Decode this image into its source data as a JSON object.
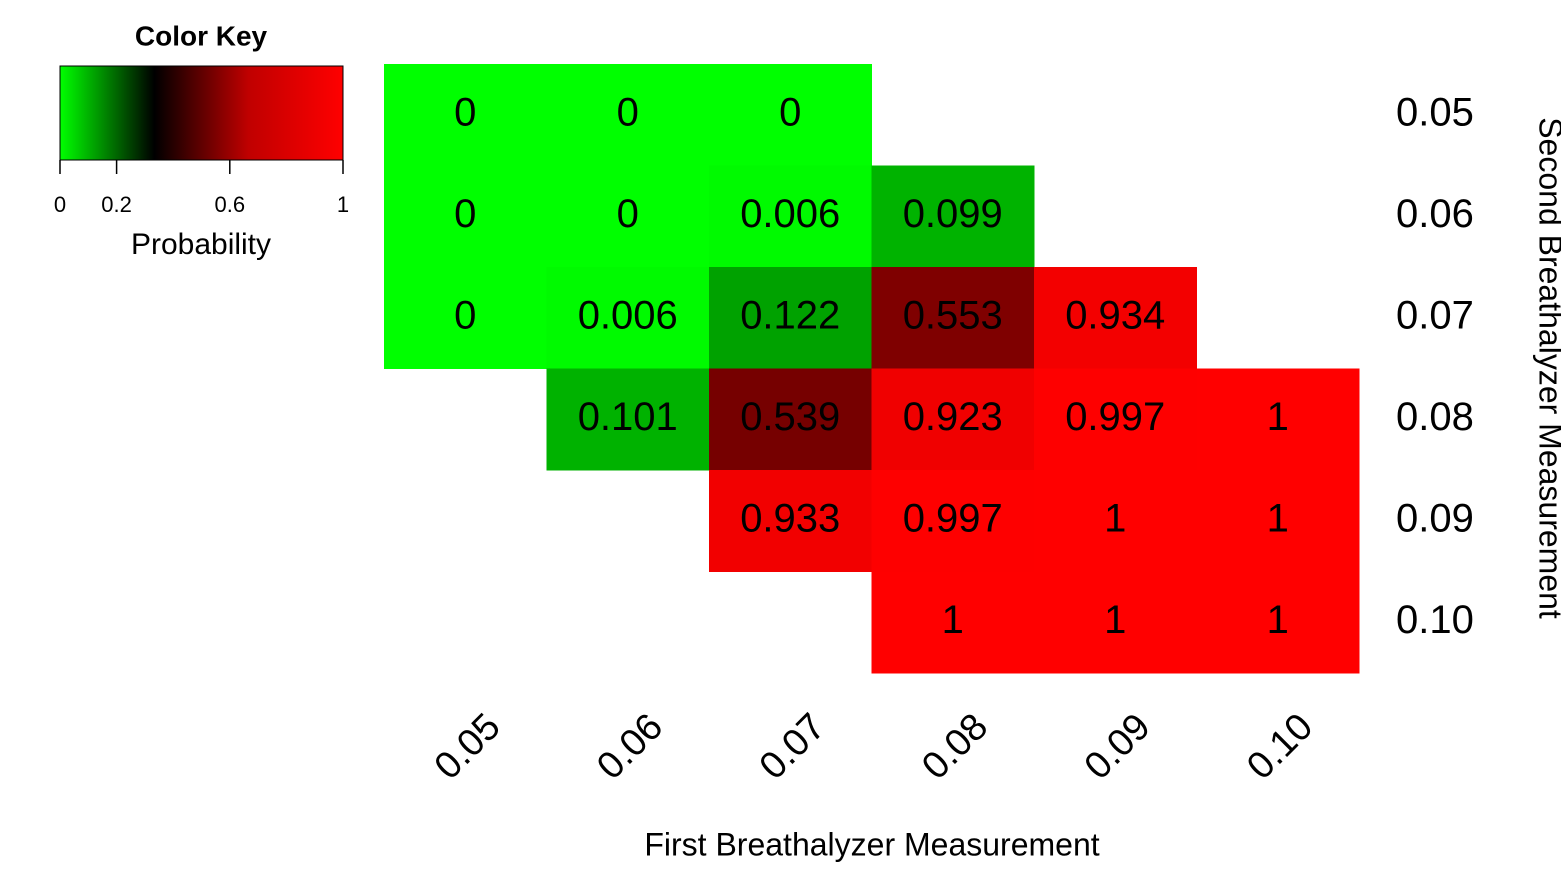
{
  "chart_data": {
    "type": "heatmap",
    "x_label": "First Breathalyzer Measurement",
    "y_label": "Second Breathalyzer Measurement",
    "x_categories": [
      "0.05",
      "0.06",
      "0.07",
      "0.08",
      "0.09",
      "0.10"
    ],
    "y_categories": [
      "0.05",
      "0.06",
      "0.07",
      "0.08",
      "0.09",
      "0.10"
    ],
    "values": [
      [
        0,
        0,
        0,
        null,
        null,
        null
      ],
      [
        0,
        0,
        0.006,
        0.099,
        null,
        null
      ],
      [
        0,
        0.006,
        0.122,
        0.553,
        0.934,
        null
      ],
      [
        null,
        0.101,
        0.539,
        0.923,
        0.997,
        1
      ],
      [
        null,
        null,
        0.933,
        0.997,
        1,
        1
      ],
      [
        null,
        null,
        null,
        1,
        1,
        1
      ]
    ],
    "colorscale": [
      "#00ff00",
      "#000000",
      "#c00000",
      "#ff0000"
    ],
    "color_key": {
      "title": "Color Key",
      "label": "Probability",
      "clim": [
        0,
        1
      ],
      "ticks": [
        0,
        0.2,
        0.6,
        1
      ]
    }
  }
}
